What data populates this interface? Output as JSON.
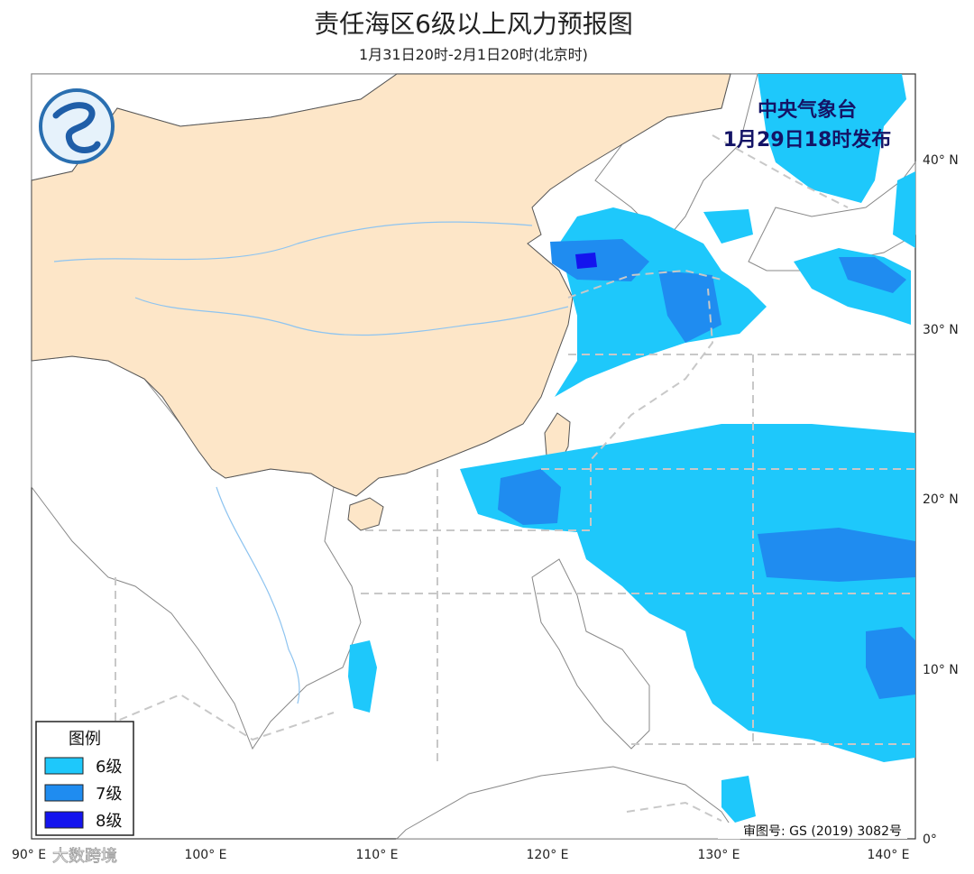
{
  "header": {
    "title": "责任海区6级以上风力预报图",
    "subtitle": "1月31日20时-2月1日20时(北京时)"
  },
  "issuer": {
    "agency": "中央气象台",
    "issued": "1月29日18时发布"
  },
  "legend": {
    "title": "图例",
    "items": [
      "6级",
      "7级",
      "8级"
    ]
  },
  "axes": {
    "longitude": [
      "90° E",
      "100° E",
      "110° E",
      "120° E",
      "130° E",
      "140° E"
    ],
    "latitude": [
      "40° N",
      "30° N",
      "20° N",
      "10° N",
      "0°"
    ]
  },
  "footer": {
    "approval": "审图号: GS (2019) 3082号",
    "watermark": "大数跨境"
  }
}
